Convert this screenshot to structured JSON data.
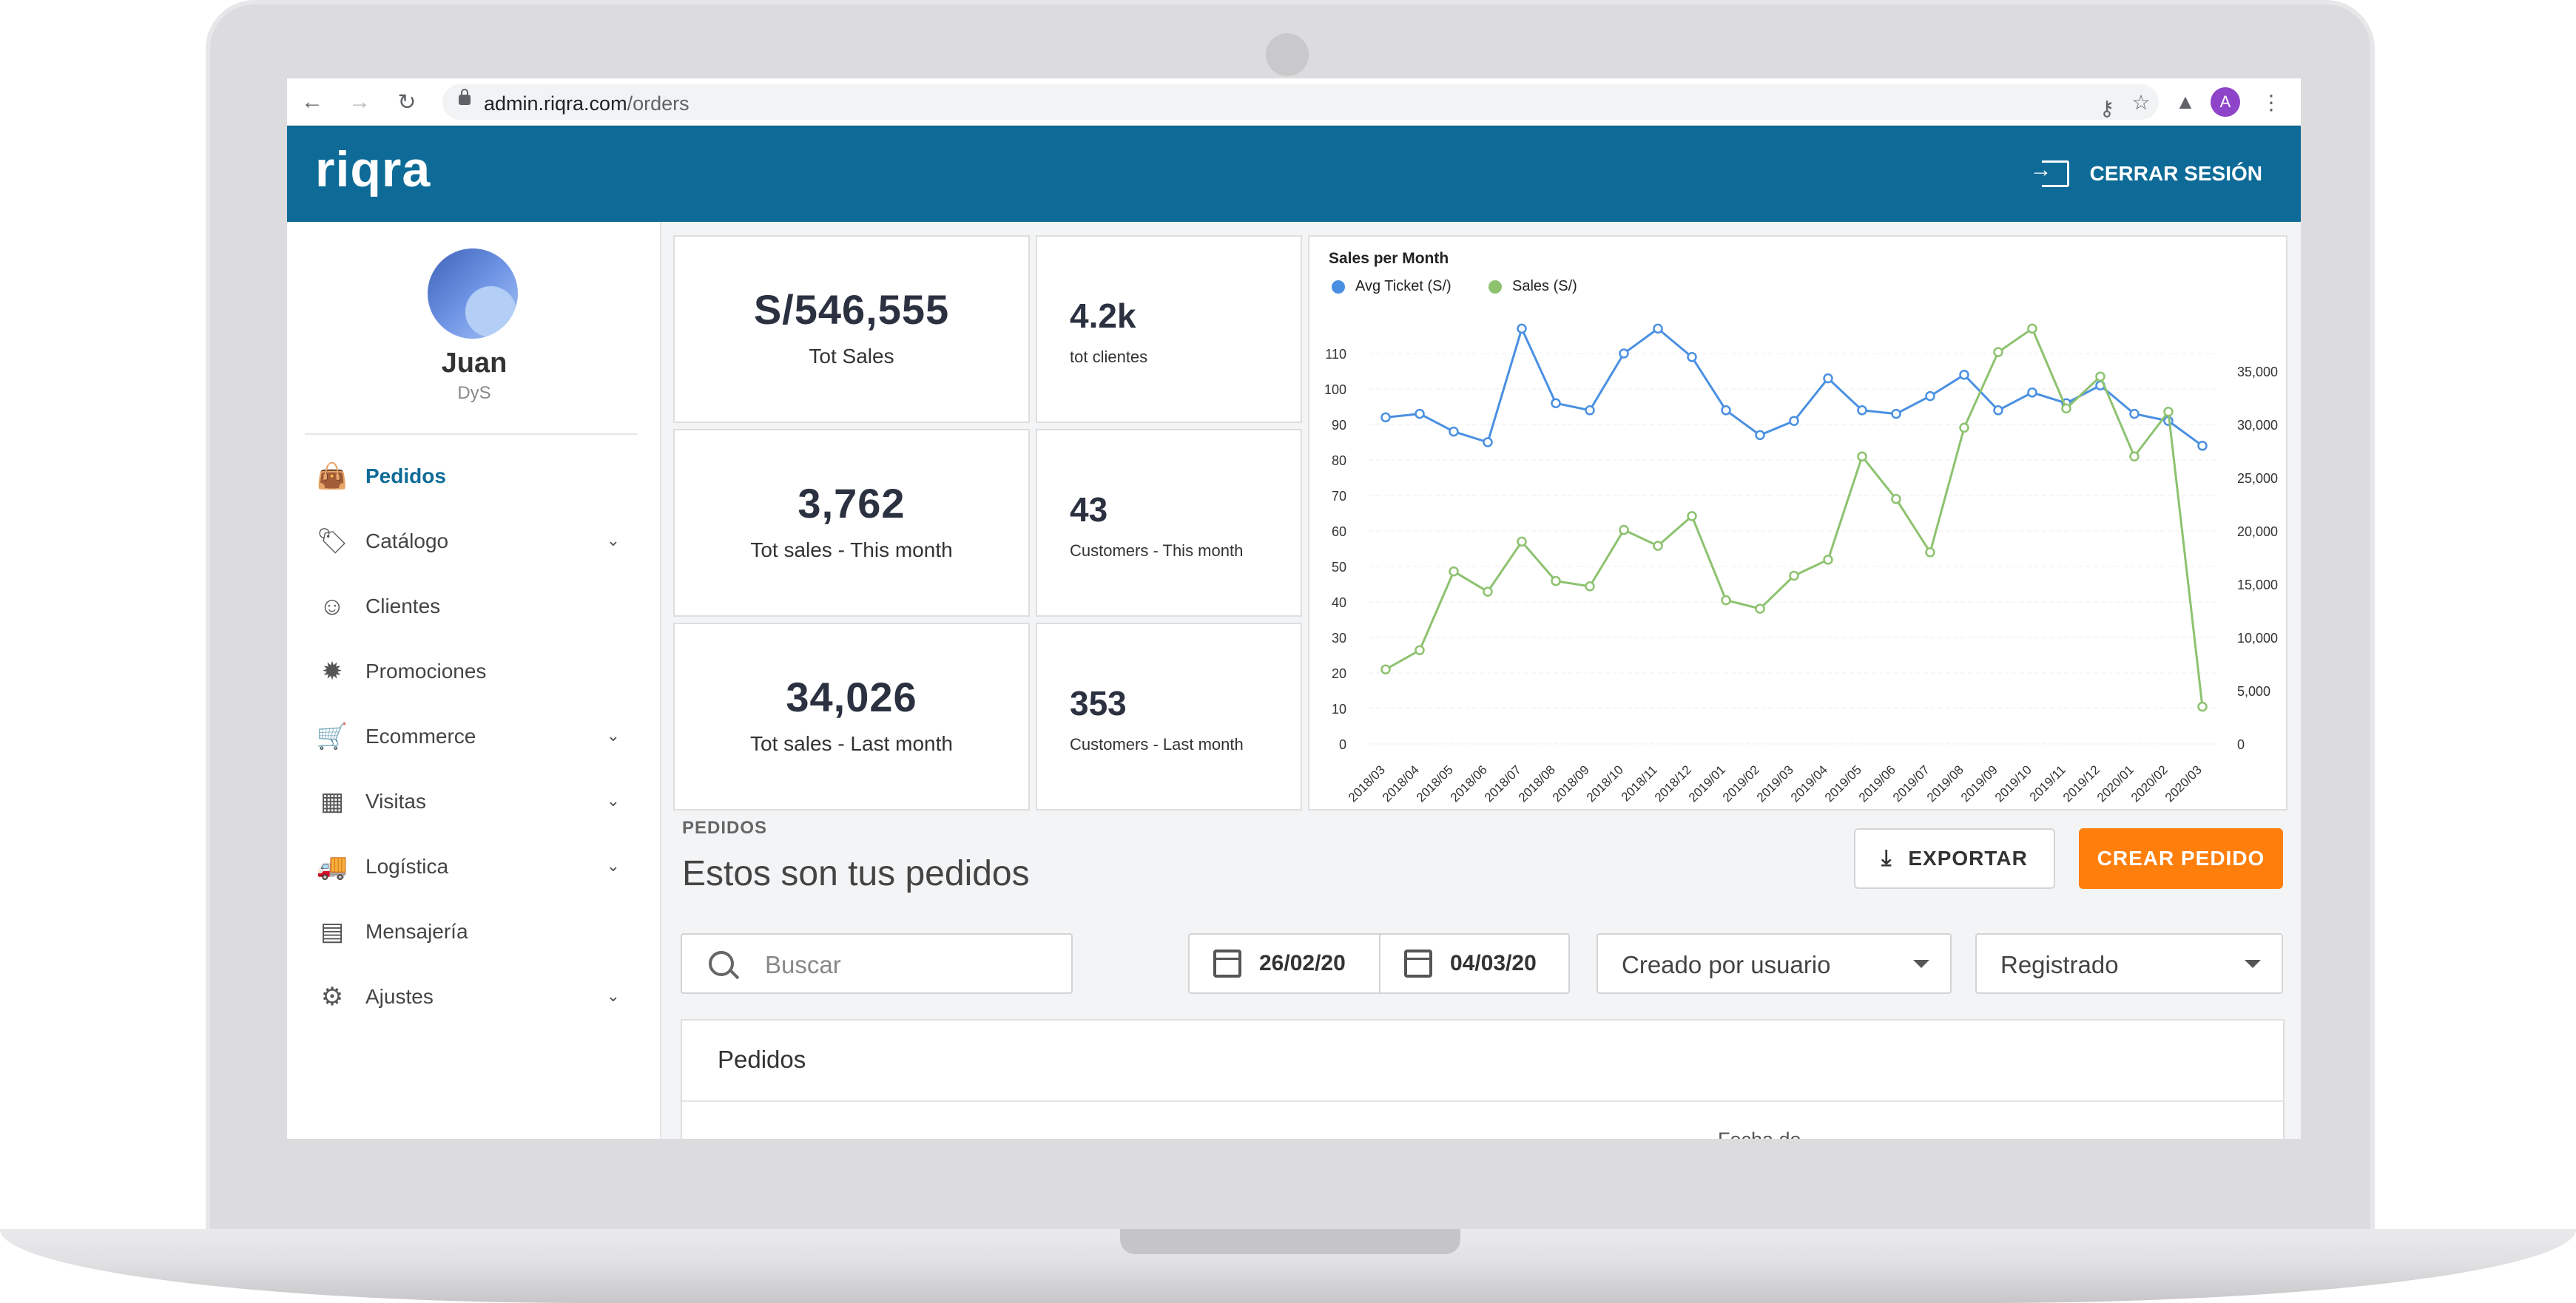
{
  "browser": {
    "url_host": "admin.riqra.com",
    "url_path": "/orders",
    "profile_initial": "A"
  },
  "header": {
    "logo": "riqra",
    "logout_label": "CERRAR SESIÓN"
  },
  "user": {
    "name": "Juan",
    "role": "DyS"
  },
  "sidebar": {
    "items": [
      {
        "label": "Pedidos",
        "icon": "shopping-bag-icon",
        "active": true,
        "expandable": false
      },
      {
        "label": "Catálogo",
        "icon": "tag-icon",
        "active": false,
        "expandable": true
      },
      {
        "label": "Clientes",
        "icon": "users-icon",
        "active": false,
        "expandable": false
      },
      {
        "label": "Promociones",
        "icon": "badge-alert-icon",
        "active": false,
        "expandable": false
      },
      {
        "label": "Ecommerce",
        "icon": "cart-icon",
        "active": false,
        "expandable": true
      },
      {
        "label": "Visitas",
        "icon": "calendar-icon",
        "active": false,
        "expandable": true
      },
      {
        "label": "Logística",
        "icon": "truck-icon",
        "active": false,
        "expandable": true
      },
      {
        "label": "Mensajería",
        "icon": "message-icon",
        "active": false,
        "expandable": false
      },
      {
        "label": "Ajustes",
        "icon": "gear-icon",
        "active": false,
        "expandable": true
      }
    ]
  },
  "stats": {
    "tot_sales_value": "S/546,555",
    "tot_sales_label": "Tot Sales",
    "tot_clientes_value": "4.2k",
    "tot_clientes_label": "tot clientes",
    "sales_this_month_value": "3,762",
    "sales_this_month_label": "Tot sales - This month",
    "customers_this_month_value": "43",
    "customers_this_month_label": "Customers - This month",
    "sales_last_month_value": "34,026",
    "sales_last_month_label": "Tot sales - Last month",
    "customers_last_month_value": "353",
    "customers_last_month_label": "Customers - Last month"
  },
  "chart_data": {
    "type": "line",
    "title": "Sales per Month",
    "x": [
      "2018/03",
      "2018/04",
      "2018/05",
      "2018/06",
      "2018/07",
      "2018/08",
      "2018/09",
      "2018/10",
      "2018/11",
      "2018/12",
      "2019/01",
      "2019/02",
      "2019/03",
      "2019/04",
      "2019/05",
      "2019/06",
      "2019/07",
      "2019/08",
      "2019/09",
      "2019/10",
      "2019/11",
      "2019/12",
      "2020/01",
      "2020/02",
      "2020/03"
    ],
    "series": [
      {
        "name": "Avg Ticket (S/)",
        "axis": "left",
        "color": "#4a90e2",
        "values": [
          92,
          93,
          88,
          85,
          117,
          96,
          94,
          110,
          117,
          109,
          94,
          87,
          91,
          103,
          94,
          93,
          98,
          104,
          94,
          99,
          96,
          101,
          93,
          91,
          84
        ]
      },
      {
        "name": "Sales (S/)",
        "axis": "right",
        "color": "#8dc26f",
        "values": [
          7000,
          8800,
          16200,
          14300,
          19000,
          15300,
          14800,
          20100,
          18600,
          21400,
          13500,
          12700,
          15800,
          17300,
          27000,
          23000,
          18000,
          29700,
          36800,
          39000,
          31500,
          34500,
          27000,
          31200,
          3500
        ]
      }
    ],
    "y_left": {
      "min": 0,
      "max": 120,
      "ticks": [
        0,
        10,
        20,
        30,
        40,
        50,
        60,
        70,
        80,
        90,
        100,
        110
      ]
    },
    "y_right": {
      "min": 0,
      "max": 40000,
      "ticks": [
        "0",
        "5,000",
        "10,000",
        "15,000",
        "20,000",
        "25,000",
        "30,000",
        "35,000"
      ]
    },
    "grid": true,
    "legend": "top-left"
  },
  "orders": {
    "section_label": "PEDIDOS",
    "title": "Estos son tus pedidos",
    "export_label": "EXPORTAR",
    "create_label": "CREAR PEDIDO",
    "search_placeholder": "Buscar",
    "date_from": "26/02/20",
    "date_to": "04/03/20",
    "filter_user": "Creado por usuario",
    "filter_status": "Registrado",
    "panel_title": "Pedidos",
    "column_partial": "Fecha de"
  }
}
